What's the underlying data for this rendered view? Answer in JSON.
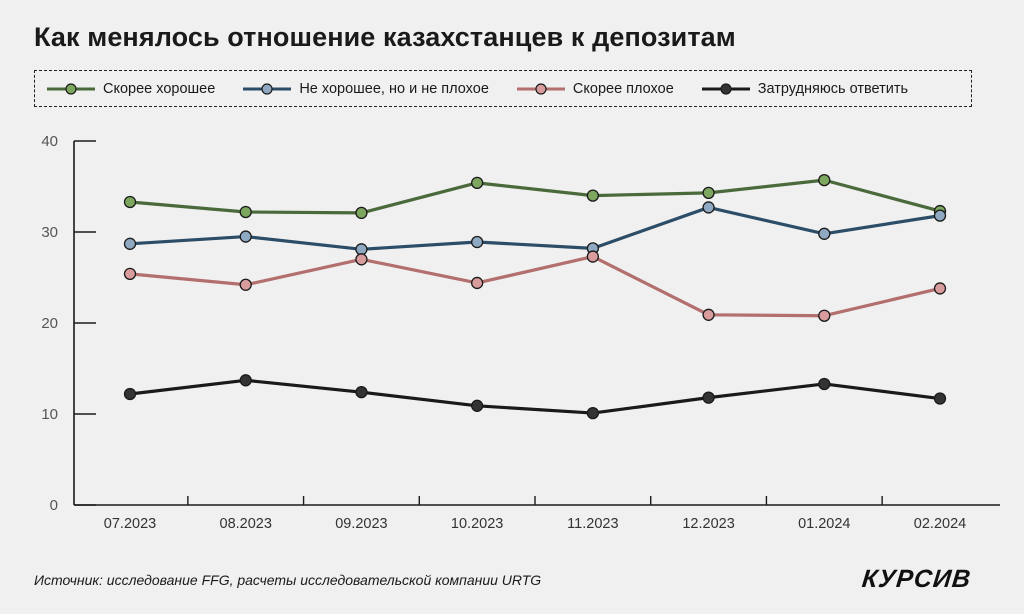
{
  "title": "Как менялось отношение казахстанцев к депозитам",
  "source": "Источник: исследование FFG, расчеты исследовательской компании URTG",
  "logo": "КУРСИВ",
  "chart_data": {
    "type": "line",
    "title": "Как менялось отношение казахстанцев к депозитам",
    "xlabel": "",
    "ylabel": "",
    "categories": [
      "07.2023",
      "08.2023",
      "09.2023",
      "10.2023",
      "11.2023",
      "12.2023",
      "01.2024",
      "02.2024"
    ],
    "ylim": [
      0,
      40
    ],
    "yticks": [
      0,
      10,
      20,
      30,
      40
    ],
    "grid": false,
    "legend_position": "top",
    "series": [
      {
        "name": "Скорее хорошее",
        "color": "#4a6a3c",
        "marker_color": "#7da65f",
        "values": [
          33.3,
          32.2,
          32.1,
          35.4,
          34.0,
          34.3,
          35.7,
          32.3
        ]
      },
      {
        "name": "Не хорошее, но и не плохое",
        "color": "#2c4d68",
        "marker_color": "#8fa9c2",
        "values": [
          28.7,
          29.5,
          28.1,
          28.9,
          28.2,
          32.7,
          29.8,
          31.8
        ]
      },
      {
        "name": "Скорее плохое",
        "color": "#b36e6e",
        "marker_color": "#d89c9c",
        "values": [
          25.4,
          24.2,
          27.0,
          24.4,
          27.3,
          20.9,
          20.8,
          23.8
        ]
      },
      {
        "name": "Затрудняюсь ответить",
        "color": "#1a1a1a",
        "marker_color": "#333333",
        "values": [
          12.2,
          13.7,
          12.4,
          10.9,
          10.1,
          11.8,
          13.3,
          11.7
        ]
      }
    ]
  }
}
